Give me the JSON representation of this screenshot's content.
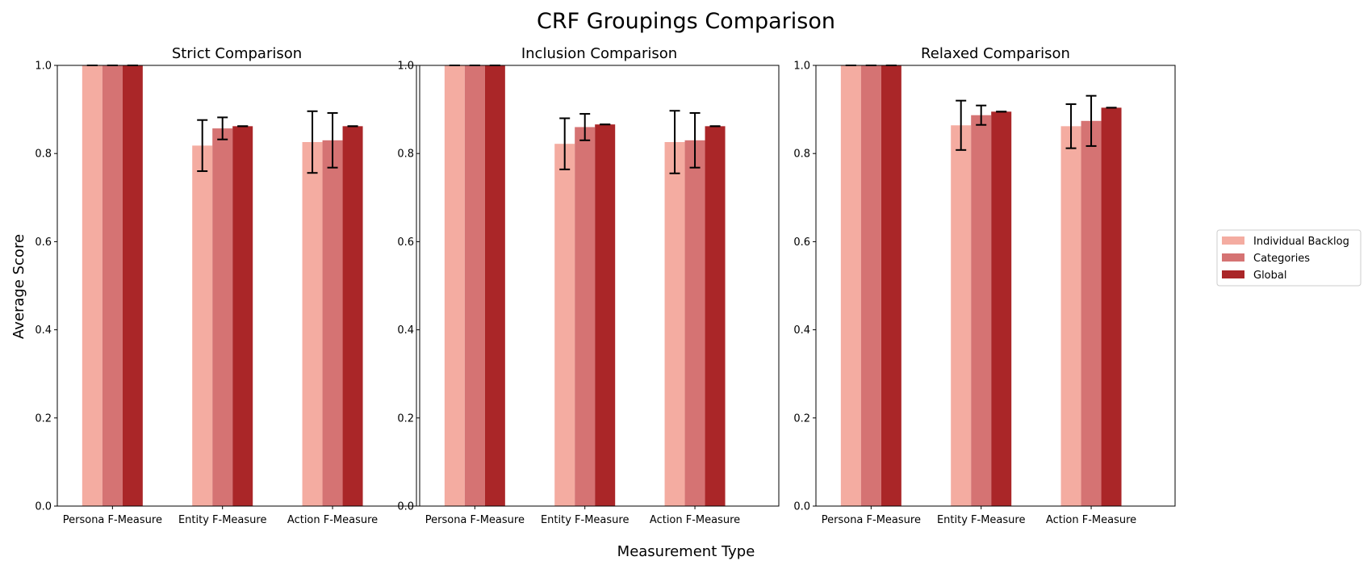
{
  "figure": {
    "title": "CRF Groupings Comparison",
    "xlabel": "Measurement Type",
    "ylabel": "Average Score"
  },
  "colors": {
    "Individual Backlog": "#f4aca1",
    "Categories": "#d57373",
    "Global": "#aa2628",
    "errorbar": "#000000"
  },
  "legend": {
    "placement": "center-right",
    "entries": [
      "Individual Backlog",
      "Categories",
      "Global"
    ]
  },
  "chart_data": [
    {
      "type": "bar",
      "title": "Strict Comparison",
      "categories": [
        "Persona F-Measure",
        "Entity F-Measure",
        "Action F-Measure"
      ],
      "ylim": [
        0,
        1.0
      ],
      "yticks": [
        "0.0",
        "0.2",
        "0.4",
        "0.6",
        "0.8",
        "1.0"
      ],
      "series": [
        {
          "name": "Individual Backlog",
          "values": [
            1.0,
            0.818,
            0.826
          ],
          "err": [
            0.0,
            0.058,
            0.07
          ]
        },
        {
          "name": "Categories",
          "values": [
            1.0,
            0.857,
            0.83
          ],
          "err": [
            0.0,
            0.025,
            0.062
          ]
        },
        {
          "name": "Global",
          "values": [
            1.0,
            0.862,
            0.862
          ],
          "err": [
            0.0,
            0.0,
            0.0
          ]
        }
      ]
    },
    {
      "type": "bar",
      "title": "Inclusion Comparison",
      "categories": [
        "Persona F-Measure",
        "Entity F-Measure",
        "Action F-Measure"
      ],
      "ylim": [
        0,
        1.0
      ],
      "yticks": [
        "0.0",
        "0.2",
        "0.4",
        "0.6",
        "0.8",
        "1.0"
      ],
      "series": [
        {
          "name": "Individual Backlog",
          "values": [
            1.0,
            0.822,
            0.826
          ],
          "err": [
            0.0,
            0.058,
            0.071
          ]
        },
        {
          "name": "Categories",
          "values": [
            1.0,
            0.86,
            0.83
          ],
          "err": [
            0.0,
            0.03,
            0.062
          ]
        },
        {
          "name": "Global",
          "values": [
            1.0,
            0.866,
            0.862
          ],
          "err": [
            0.0,
            0.0,
            0.0
          ]
        }
      ]
    },
    {
      "type": "bar",
      "title": "Relaxed Comparison",
      "categories": [
        "Persona F-Measure",
        "Entity F-Measure",
        "Action F-Measure"
      ],
      "ylim": [
        0,
        1.0
      ],
      "yticks": [
        "0.0",
        "0.2",
        "0.4",
        "0.6",
        "0.8",
        "1.0"
      ],
      "series": [
        {
          "name": "Individual Backlog",
          "values": [
            1.0,
            0.864,
            0.862
          ],
          "err": [
            0.0,
            0.056,
            0.05
          ]
        },
        {
          "name": "Categories",
          "values": [
            1.0,
            0.887,
            0.874
          ],
          "err": [
            0.0,
            0.022,
            0.057
          ]
        },
        {
          "name": "Global",
          "values": [
            1.0,
            0.895,
            0.904
          ],
          "err": [
            0.0,
            0.0,
            0.0
          ]
        }
      ]
    }
  ]
}
